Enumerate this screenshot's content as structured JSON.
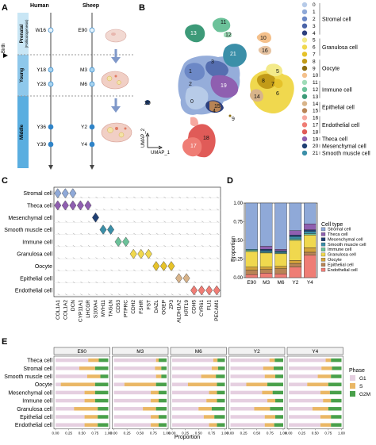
{
  "figure": {
    "panel_letters": [
      "A",
      "B",
      "C",
      "D",
      "E"
    ]
  },
  "panelA": {
    "col_human": "Human",
    "col_sheep": "Sheep",
    "birth_label": "Birth",
    "stages": [
      {
        "name": "Prenatal",
        "sub": "(Folliculogenesis)",
        "color": "#c9e6f5"
      },
      {
        "name": "Young",
        "sub": "",
        "color": "#8ec8eb"
      },
      {
        "name": "Middle",
        "sub": "",
        "color": "#5aaee0"
      }
    ],
    "human_points": [
      "W16",
      "Y18",
      "Y28",
      "Y36",
      "Y39"
    ],
    "sheep_points": [
      "E90",
      "M3",
      "M6",
      "Y2",
      "Y4"
    ],
    "colors": {
      "line": "#555555",
      "dot_light": "#e6f3fb",
      "dot_mid": "#a9d4ef",
      "dot_dark": "#2f84c8",
      "arrow": "#7f98c9"
    }
  },
  "panelB": {
    "axis_x": "UMAP_1",
    "axis_y": "UMAP_2",
    "cluster_labels": [
      "0",
      "1",
      "2",
      "3",
      "4",
      "5",
      "6",
      "7",
      "8",
      "9",
      "10",
      "11",
      "12",
      "13",
      "14",
      "15",
      "16",
      "17",
      "18",
      "19",
      "20",
      "21"
    ],
    "legend": [
      {
        "id": "0",
        "color": "#b7cbe8"
      },
      {
        "id": "1",
        "color": "#8fa9d8"
      },
      {
        "id": "2",
        "color": "#6c88c6"
      },
      {
        "id": "3",
        "color": "#4a63a8"
      },
      {
        "id": "4",
        "color": "#2c3f7d"
      },
      {
        "id": "5",
        "color": "#f3ea8a"
      },
      {
        "id": "6",
        "color": "#f0d84e"
      },
      {
        "id": "7",
        "color": "#e6c22a"
      },
      {
        "id": "8",
        "color": "#c29b18"
      },
      {
        "id": "9",
        "color": "#8b6d10"
      },
      {
        "id": "10",
        "color": "#f4c08b"
      },
      {
        "id": "11",
        "color": "#9fdcb8"
      },
      {
        "id": "12",
        "color": "#6cc29a"
      },
      {
        "id": "13",
        "color": "#3d9a78"
      },
      {
        "id": "14",
        "color": "#d8b48a"
      },
      {
        "id": "15",
        "color": "#b88455"
      },
      {
        "id": "16",
        "color": "#f6a9a0"
      },
      {
        "id": "17",
        "color": "#ef7d75"
      },
      {
        "id": "18",
        "color": "#e05b58"
      },
      {
        "id": "19",
        "color": "#8f5fb0"
      },
      {
        "id": "20",
        "color": "#1f3f73"
      },
      {
        "id": "21",
        "color": "#3b8fa8"
      }
    ],
    "groups": [
      {
        "name": "Stromal cell",
        "first": 0,
        "last": 4
      },
      {
        "name": "Granulosa cell",
        "first": 5,
        "last": 7
      },
      {
        "name": "Oocyte",
        "first": 8,
        "last": 10
      },
      {
        "name": "Immune cell",
        "first": 11,
        "last": 13
      },
      {
        "name": "Epithelial cell",
        "first": 14,
        "last": 15
      },
      {
        "name": "Endothelial cell",
        "first": 16,
        "last": 18
      },
      {
        "name": "Theca cell",
        "first": 19,
        "last": 19
      },
      {
        "name": "Mesenchymal cell",
        "first": 20,
        "last": 20
      },
      {
        "name": "Smooth muscle cell",
        "first": 21,
        "last": 21
      }
    ]
  },
  "panelC": {
    "rows": [
      "Stromal cell",
      "Theca cell",
      "Mesenchymal cell",
      "Smooth muscle cell",
      "Immune cell",
      "Granulosa cell",
      "Oocyte",
      "Epithelial cell",
      "Endothelial cell"
    ],
    "genes": [
      "COL1A1",
      "COL1A2",
      "DCN",
      "CYP11A1",
      "LHCGR",
      "S100A4",
      "MYH11",
      "TAGLN",
      "CD53",
      "PTPRC",
      "CDH2",
      "FSHR",
      "FST",
      "DAZL",
      "OOEP",
      "ZP3",
      "ALDH1A2",
      "KRT19",
      "CDH5",
      "CYR61",
      "FLI1",
      "PECAM1"
    ],
    "row_colors": [
      "#8fa9d8",
      "#8f5fb0",
      "#1f3f73",
      "#3b8fa8",
      "#6cc29a",
      "#f0d84e",
      "#e6c22a",
      "#d8b48a",
      "#ef7d75"
    ],
    "violins": [
      {
        "row": 0,
        "cols": [
          0,
          1,
          2
        ]
      },
      {
        "row": 1,
        "cols": [
          0,
          1,
          2,
          3,
          4
        ]
      },
      {
        "row": 2,
        "cols": [
          5
        ]
      },
      {
        "row": 3,
        "cols": [
          6,
          7
        ]
      },
      {
        "row": 4,
        "cols": [
          8,
          9
        ]
      },
      {
        "row": 5,
        "cols": [
          10,
          11,
          12
        ]
      },
      {
        "row": 6,
        "cols": [
          13,
          14,
          15
        ]
      },
      {
        "row": 7,
        "cols": [
          16,
          17
        ]
      },
      {
        "row": 8,
        "cols": [
          18,
          19,
          20,
          21
        ]
      }
    ]
  },
  "panelD": {
    "ylabel": "Proportion",
    "legend_title": "Cell type",
    "categories": [
      "E90",
      "M3",
      "M6",
      "Y2",
      "Y4"
    ],
    "yticks": [
      "0.00",
      "0.25",
      "0.50",
      "0.75",
      "1.00"
    ],
    "series": [
      {
        "name": "Stromal cell",
        "color": "#8fa9d8",
        "values": [
          0.62,
          0.58,
          0.62,
          0.37,
          0.28
        ]
      },
      {
        "name": "Theca cell",
        "color": "#8f5fb0",
        "values": [
          0.0,
          0.04,
          0.02,
          0.06,
          0.08
        ]
      },
      {
        "name": "Mesenchymal cell",
        "color": "#1f3f73",
        "values": [
          0.0,
          0.02,
          0.01,
          0.02,
          0.02
        ]
      },
      {
        "name": "Smooth muscle cell",
        "color": "#3b8fa8",
        "values": [
          0.01,
          0.02,
          0.02,
          0.03,
          0.03
        ]
      },
      {
        "name": "Immune cell",
        "color": "#6cc29a",
        "values": [
          0.02,
          0.01,
          0.01,
          0.02,
          0.02
        ]
      },
      {
        "name": "Granulosa cell",
        "color": "#f0d84e",
        "values": [
          0.21,
          0.19,
          0.17,
          0.27,
          0.17
        ]
      },
      {
        "name": "Oocyte",
        "color": "#d4a23a",
        "values": [
          0.04,
          0.03,
          0.03,
          0.04,
          0.06
        ]
      },
      {
        "name": "Epithelial cell",
        "color": "#b88455",
        "values": [
          0.06,
          0.05,
          0.07,
          0.05,
          0.04
        ]
      },
      {
        "name": "Endothelial cell",
        "color": "#ef7d75",
        "values": [
          0.04,
          0.06,
          0.05,
          0.14,
          0.3
        ]
      }
    ]
  },
  "panelE": {
    "xlabel": "Proportion",
    "legend_title": "Phase",
    "facets": [
      "E90",
      "M3",
      "M6",
      "Y2",
      "Y4"
    ],
    "xticks": [
      "0.00",
      "0.25",
      "0.50",
      "0.75",
      "1.00"
    ],
    "rows": [
      "Theca cell",
      "Stromal cell",
      "Smooth muscle cell",
      "Oocyte",
      "Mesenchymal cell",
      "Immune cell",
      "Granulosa cell",
      "Epithelial cell",
      "Endothelial cell"
    ],
    "phases": [
      {
        "name": "G1",
        "color": "#e5cfe0"
      },
      {
        "name": "S",
        "color": "#eab765"
      },
      {
        "name": "G2M",
        "color": "#49a04a"
      }
    ],
    "values": [
      [
        [
          0.62,
          0.2,
          0.18
        ],
        [
          0.8,
          0.05,
          0.15
        ],
        [
          0.78,
          0.08,
          0.14
        ],
        [
          0.74,
          0.1,
          0.16
        ],
        [
          0.7,
          0.1,
          0.2
        ]
      ],
      [
        [
          0.45,
          0.3,
          0.25
        ],
        [
          0.78,
          0.12,
          0.1
        ],
        [
          0.75,
          0.12,
          0.13
        ],
        [
          0.62,
          0.2,
          0.18
        ],
        [
          0.62,
          0.2,
          0.18
        ]
      ],
      [
        [
          0.6,
          0.25,
          0.15
        ],
        [
          0.8,
          0.1,
          0.1
        ],
        [
          0.55,
          0.28,
          0.17
        ],
        [
          0.65,
          0.2,
          0.15
        ],
        [
          0.55,
          0.25,
          0.2
        ]
      ],
      [
        [
          0.1,
          0.65,
          0.25
        ],
        [
          0.2,
          0.6,
          0.2
        ],
        [
          0.3,
          0.55,
          0.15
        ],
        [
          0.3,
          0.4,
          0.3
        ],
        [
          0.35,
          0.4,
          0.25
        ]
      ],
      [
        [
          0.55,
          0.2,
          0.25
        ],
        [
          0.7,
          0.15,
          0.15
        ],
        [
          0.7,
          0.15,
          0.15
        ],
        [
          0.6,
          0.2,
          0.2
        ],
        [
          0.6,
          0.18,
          0.22
        ]
      ],
      [
        [
          0.55,
          0.2,
          0.25
        ],
        [
          0.7,
          0.15,
          0.15
        ],
        [
          0.65,
          0.2,
          0.15
        ],
        [
          0.7,
          0.15,
          0.15
        ],
        [
          0.65,
          0.15,
          0.2
        ]
      ],
      [
        [
          0.35,
          0.45,
          0.2
        ],
        [
          0.55,
          0.25,
          0.2
        ],
        [
          0.5,
          0.25,
          0.25
        ],
        [
          0.45,
          0.3,
          0.25
        ],
        [
          0.45,
          0.3,
          0.25
        ]
      ],
      [
        [
          0.55,
          0.25,
          0.2
        ],
        [
          0.7,
          0.15,
          0.15
        ],
        [
          0.6,
          0.2,
          0.2
        ],
        [
          0.65,
          0.2,
          0.15
        ],
        [
          0.6,
          0.2,
          0.2
        ]
      ],
      [
        [
          0.55,
          0.25,
          0.2
        ],
        [
          0.7,
          0.15,
          0.15
        ],
        [
          0.7,
          0.15,
          0.15
        ],
        [
          0.65,
          0.18,
          0.17
        ],
        [
          0.6,
          0.2,
          0.2
        ]
      ]
    ]
  },
  "chart_data": [
    {
      "type": "bar",
      "title": "",
      "ylabel": "Proportion",
      "xlabel": "",
      "categories": [
        "E90",
        "M3",
        "M6",
        "Y2",
        "Y4"
      ],
      "ylim": [
        0,
        1
      ],
      "legend": "right",
      "series": [
        {
          "name": "Stromal cell",
          "values": [
            0.62,
            0.58,
            0.62,
            0.37,
            0.28
          ]
        },
        {
          "name": "Theca cell",
          "values": [
            0.0,
            0.04,
            0.02,
            0.06,
            0.08
          ]
        },
        {
          "name": "Mesenchymal cell",
          "values": [
            0.0,
            0.02,
            0.01,
            0.02,
            0.02
          ]
        },
        {
          "name": "Smooth muscle cell",
          "values": [
            0.01,
            0.02,
            0.02,
            0.03,
            0.03
          ]
        },
        {
          "name": "Immune cell",
          "values": [
            0.02,
            0.01,
            0.01,
            0.02,
            0.02
          ]
        },
        {
          "name": "Granulosa cell",
          "values": [
            0.21,
            0.19,
            0.17,
            0.27,
            0.17
          ]
        },
        {
          "name": "Oocyte",
          "values": [
            0.04,
            0.03,
            0.03,
            0.04,
            0.06
          ]
        },
        {
          "name": "Epithelial cell",
          "values": [
            0.06,
            0.05,
            0.07,
            0.05,
            0.04
          ]
        },
        {
          "name": "Endothelial cell",
          "values": [
            0.04,
            0.06,
            0.05,
            0.14,
            0.3
          ]
        }
      ]
    },
    {
      "type": "bar",
      "title": "",
      "xlabel": "Proportion",
      "ylabel": "",
      "facets": [
        "E90",
        "M3",
        "M6",
        "Y2",
        "Y4"
      ],
      "categories": [
        "Theca cell",
        "Stromal cell",
        "Smooth muscle cell",
        "Oocyte",
        "Mesenchymal cell",
        "Immune cell",
        "Granulosa cell",
        "Epithelial cell",
        "Endothelial cell"
      ],
      "xlim": [
        0,
        1
      ],
      "legend": "right",
      "series": [
        {
          "name": "G1"
        },
        {
          "name": "S"
        },
        {
          "name": "G2M"
        }
      ]
    }
  ]
}
